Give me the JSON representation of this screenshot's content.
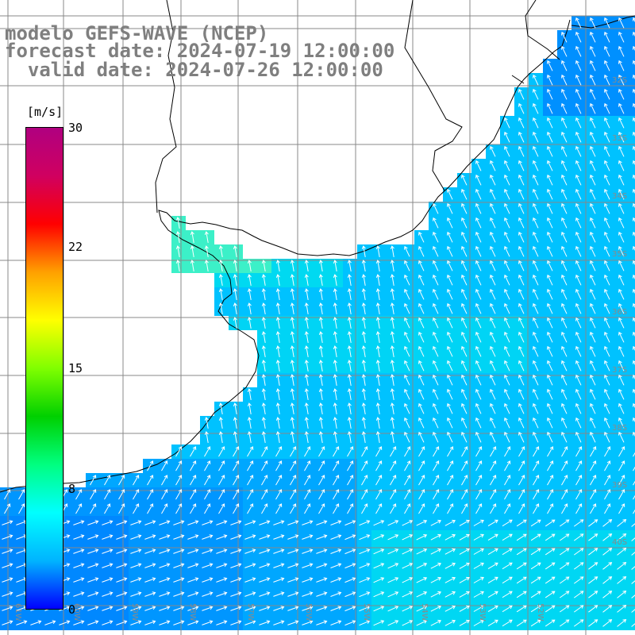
{
  "titles": {
    "model": "modelo GEFS-WAVE (NCEP)",
    "forecast": "forecast date: 2024-07-19 12:00:00",
    "valid": "  valid date: 2024-07-26 12:00:00"
  },
  "colorbar": {
    "unit": "[m/s]",
    "ticks": [
      "30",
      "22",
      "15",
      "8",
      "0"
    ],
    "tick_values": [
      30,
      22,
      15,
      8,
      0
    ],
    "min": 0,
    "max": 30,
    "stops": [
      "#0000ff",
      "#00b4ff",
      "#00ffff",
      "#00ff80",
      "#00d000",
      "#80ff00",
      "#ffff00",
      "#ffa000",
      "#ff0000",
      "#d00060",
      "#b00080"
    ]
  },
  "grid": {
    "lat_labels": [
      "32S",
      "33S",
      "34S",
      "35S",
      "36S",
      "37S",
      "38S",
      "39S",
      "40S"
    ],
    "lon_labels": [
      "61W",
      "60W",
      "59W",
      "58W",
      "57W",
      "56W",
      "55W",
      "54W",
      "53W",
      "52W"
    ]
  },
  "colors": {
    "land": "#ffffff",
    "grid": "#888888",
    "coast": "#000000",
    "arrows": "#ffffff",
    "title": "#7f7f7f"
  }
}
